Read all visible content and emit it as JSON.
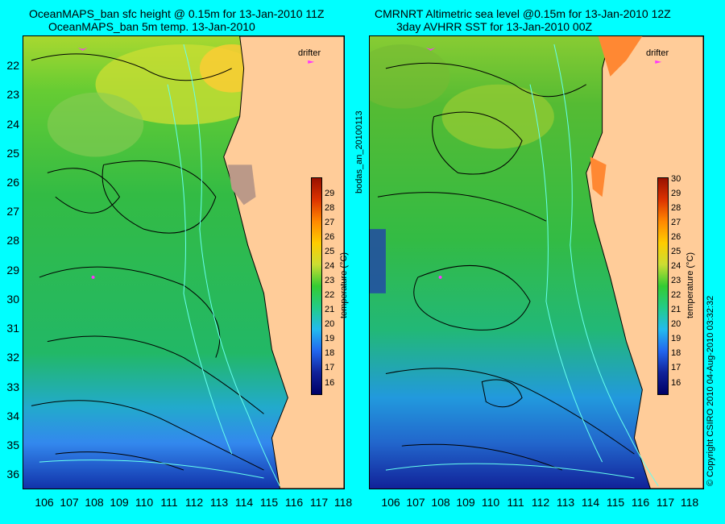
{
  "left_panel": {
    "title_line1": "OceanMAPS_ban sfc height @ 0.15m for 13-Jan-2010 11Z",
    "title_line2": "OceanMAPS_ban 5m temp. 13-Jan-2010",
    "drifter_label": "drifter",
    "colorbar_ticks": [
      "29",
      "28",
      "27",
      "26",
      "25",
      "24",
      "23",
      "22",
      "21",
      "20",
      "19",
      "18",
      "17",
      "16"
    ],
    "colorbar_label": "temperature (°C)"
  },
  "right_panel": {
    "title_line1": "CMRNRT Altimetric sea level  @0.15m  for 13-Jan-2010 12Z",
    "title_line2": "3day AVHRR SST for 13-Jan-2010 00Z",
    "drifter_label": "drifter",
    "colorbar_ticks": [
      "30",
      "29",
      "28",
      "27",
      "26",
      "25",
      "24",
      "23",
      "22",
      "21",
      "20",
      "19",
      "18",
      "17",
      "16"
    ],
    "colorbar_label": "temperature (°C)"
  },
  "y_ticks": [
    "22",
    "23",
    "24",
    "25",
    "26",
    "27",
    "28",
    "29",
    "30",
    "31",
    "32",
    "33",
    "34",
    "35",
    "36"
  ],
  "x_ticks": [
    "106",
    "107",
    "108",
    "109",
    "110",
    "111",
    "112",
    "113",
    "114",
    "115",
    "116",
    "117",
    "118"
  ],
  "center_side_label": "bodas_an_20100113",
  "copyright": "© Copyright CSIRO 2010   04-Aug-2010 03:32:32",
  "colors": {
    "background": "#00ffff",
    "land": "#ffcc99",
    "ocean_green": "#33cc33",
    "ocean_blue": "#3399ff",
    "warm": "#ffcc33"
  }
}
